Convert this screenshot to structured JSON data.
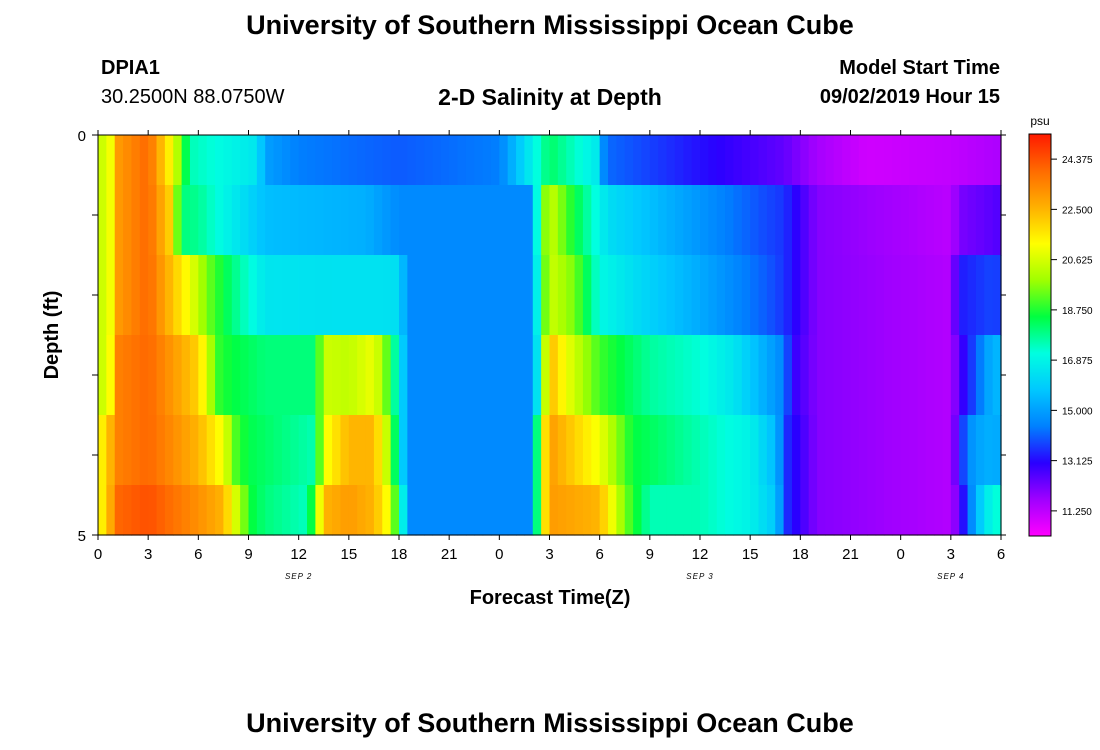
{
  "header": {
    "title": "University of Southern Mississippi Ocean Cube",
    "station_id": "DPIA1",
    "station_coords": "30.2500N 88.0750W",
    "plot_title": "2-D Salinity at Depth",
    "start_label": "Model Start Time",
    "start_value": "09/02/2019 Hour 15"
  },
  "footer": {
    "title": "University of Southern Mississippi Ocean Cube"
  },
  "chart_data": {
    "type": "heatmap",
    "title": "2-D Salinity at Depth",
    "xlabel": "Forecast Time(Z)",
    "ylabel": "Depth (ft)",
    "x_tick_labels": [
      "0",
      "3",
      "6",
      "9",
      "12",
      "15",
      "18",
      "21",
      "0",
      "3",
      "6",
      "9",
      "12",
      "15",
      "18",
      "21",
      "0",
      "3",
      "6"
    ],
    "x_day_labels": [
      {
        "label": "SEP 2",
        "hour": 12
      },
      {
        "label": "SEP 3",
        "hour": 36
      },
      {
        "label": "SEP 4",
        "hour": 51
      }
    ],
    "x_range_hours": [
      0,
      54
    ],
    "y_tick_labels": [
      "0",
      "5"
    ],
    "y_range": [
      0,
      5
    ],
    "depth_rows": [
      0.25,
      1.0,
      2.0,
      3.0,
      4.0,
      4.75
    ],
    "colorbar": {
      "units": "psu",
      "min": 10.3125,
      "max": 25.3125,
      "labels": [
        "24.375",
        "22.500",
        "20.625",
        "18.750",
        "16.875",
        "15.000",
        "13.125",
        "11.250"
      ],
      "colors": [
        "#ff00ff",
        "#a000ff",
        "#2a00ff",
        "#0080ff",
        "#00c8ff",
        "#00ffe0",
        "#00ff40",
        "#a0ff00",
        "#ffff00",
        "#ffb000",
        "#ff6a00",
        "#ff1a00"
      ]
    },
    "series": [
      {
        "name": "depth_0.25ft",
        "segments": [
          [
            0,
            21
          ],
          [
            0.5,
            20
          ],
          [
            1.2,
            23
          ],
          [
            3,
            24
          ],
          [
            4.5,
            21
          ],
          [
            5.5,
            17.5
          ],
          [
            9.5,
            16.5
          ],
          [
            10,
            15
          ],
          [
            12,
            14.4
          ],
          [
            18,
            14
          ],
          [
            24,
            14.4
          ],
          [
            26,
            16.8
          ],
          [
            27,
            18.2
          ],
          [
            30,
            16.5
          ],
          [
            30.3,
            14.2
          ],
          [
            36,
            13.2
          ],
          [
            41,
            12.4
          ],
          [
            43,
            11.6
          ],
          [
            46,
            11
          ],
          [
            51,
            11.2
          ],
          [
            54,
            11.5
          ]
        ]
      },
      {
        "name": "depth_1ft",
        "segments": [
          [
            0,
            21
          ],
          [
            0.5,
            20
          ],
          [
            1.2,
            23
          ],
          [
            3,
            24
          ],
          [
            4.3,
            22
          ],
          [
            5,
            18
          ],
          [
            6,
            17.8
          ],
          [
            7,
            17.2
          ],
          [
            10,
            15.6
          ],
          [
            16,
            15.3
          ],
          [
            18,
            14.6
          ],
          [
            26,
            14.6
          ],
          [
            26.4,
            18.5
          ],
          [
            27,
            20.5
          ],
          [
            28.5,
            18.5
          ],
          [
            30.5,
            16.3
          ],
          [
            36,
            14.8
          ],
          [
            40,
            13.8
          ],
          [
            41,
            13.6
          ],
          [
            43,
            12
          ],
          [
            51,
            11.3
          ],
          [
            51.5,
            12.1
          ],
          [
            54,
            12.6
          ]
        ]
      },
      {
        "name": "depth_2ft",
        "segments": [
          [
            0,
            21
          ],
          [
            0.5,
            20
          ],
          [
            1.2,
            23
          ],
          [
            3,
            24
          ],
          [
            5.5,
            21
          ],
          [
            6.5,
            19.5
          ],
          [
            8,
            18
          ],
          [
            10,
            16.5
          ],
          [
            14,
            16.4
          ],
          [
            17,
            16.4
          ],
          [
            18,
            16.3
          ],
          [
            18.5,
            14.6
          ],
          [
            26,
            14.6
          ],
          [
            26.4,
            18
          ],
          [
            27,
            20.5
          ],
          [
            28.5,
            19.5
          ],
          [
            30,
            17
          ],
          [
            33,
            16
          ],
          [
            36,
            15.2
          ],
          [
            40,
            14
          ],
          [
            41,
            13.6
          ],
          [
            43,
            12
          ],
          [
            51,
            11.4
          ],
          [
            51.5,
            13.3
          ],
          [
            53.5,
            13.8
          ],
          [
            54,
            13.6
          ]
        ]
      },
      {
        "name": "depth_3ft",
        "segments": [
          [
            0,
            21
          ],
          [
            0.5,
            20
          ],
          [
            1.2,
            23.5
          ],
          [
            3,
            24
          ],
          [
            6,
            22
          ],
          [
            6.6,
            20.5
          ],
          [
            7,
            19
          ],
          [
            8,
            18.5
          ],
          [
            10,
            18
          ],
          [
            13,
            18
          ],
          [
            13.5,
            20.5
          ],
          [
            15,
            20.3
          ],
          [
            16.5,
            21
          ],
          [
            17.4,
            19
          ],
          [
            18.2,
            16
          ],
          [
            18.6,
            14.6
          ],
          [
            26,
            14.6
          ],
          [
            26.4,
            17.5
          ],
          [
            27,
            22.5
          ],
          [
            28,
            21
          ],
          [
            30,
            19
          ],
          [
            33,
            17.7
          ],
          [
            36,
            17.2
          ],
          [
            38,
            16.5
          ],
          [
            41,
            14.5
          ],
          [
            41.5,
            13
          ],
          [
            43,
            12
          ],
          [
            51,
            11.4
          ],
          [
            51.5,
            12.6
          ],
          [
            52.5,
            14
          ],
          [
            53.5,
            15.5
          ],
          [
            54,
            15.3
          ]
        ]
      },
      {
        "name": "depth_4ft",
        "segments": [
          [
            0,
            21
          ],
          [
            0.5,
            22
          ],
          [
            1.2,
            23.5
          ],
          [
            3,
            24
          ],
          [
            6,
            22.5
          ],
          [
            7.5,
            21
          ],
          [
            8.3,
            19
          ],
          [
            9,
            18.4
          ],
          [
            13,
            17.5
          ],
          [
            13.5,
            21
          ],
          [
            15,
            22.5
          ],
          [
            16.5,
            22.5
          ],
          [
            17.4,
            20
          ],
          [
            18.2,
            16
          ],
          [
            18.6,
            14.6
          ],
          [
            26,
            14.6
          ],
          [
            26.4,
            20
          ],
          [
            27,
            23
          ],
          [
            30,
            21
          ],
          [
            32,
            18.5
          ],
          [
            36,
            17.5
          ],
          [
            39,
            16.8
          ],
          [
            40.5,
            15.5
          ],
          [
            41.2,
            13.5
          ],
          [
            43,
            12
          ],
          [
            51,
            11.4
          ],
          [
            51.5,
            13
          ],
          [
            52,
            14.6
          ],
          [
            53,
            15.3
          ],
          [
            54,
            15.2
          ]
        ]
      },
      {
        "name": "depth_4.75ft",
        "segments": [
          [
            0,
            21
          ],
          [
            0.5,
            22
          ],
          [
            1.2,
            24
          ],
          [
            3,
            24.4
          ],
          [
            6,
            23.2
          ],
          [
            7.5,
            22.5
          ],
          [
            8.5,
            20
          ],
          [
            9.2,
            18.5
          ],
          [
            10,
            18
          ],
          [
            12.5,
            17.4
          ],
          [
            13,
            19.5
          ],
          [
            13.5,
            22.5
          ],
          [
            15,
            23
          ],
          [
            16.5,
            22.5
          ],
          [
            17.4,
            21
          ],
          [
            18.2,
            17
          ],
          [
            18.6,
            14.6
          ],
          [
            26,
            14.6
          ],
          [
            26.4,
            20
          ],
          [
            27,
            23
          ],
          [
            30,
            22.5
          ],
          [
            31.5,
            19.5
          ],
          [
            33,
            17.5
          ],
          [
            36,
            17.5
          ],
          [
            39,
            16.8
          ],
          [
            40.5,
            15.8
          ],
          [
            41.2,
            13.5
          ],
          [
            43,
            12
          ],
          [
            51,
            11.4
          ],
          [
            51.5,
            12.4
          ],
          [
            52,
            14
          ],
          [
            53,
            16.5
          ],
          [
            54,
            17.4
          ]
        ]
      }
    ]
  }
}
